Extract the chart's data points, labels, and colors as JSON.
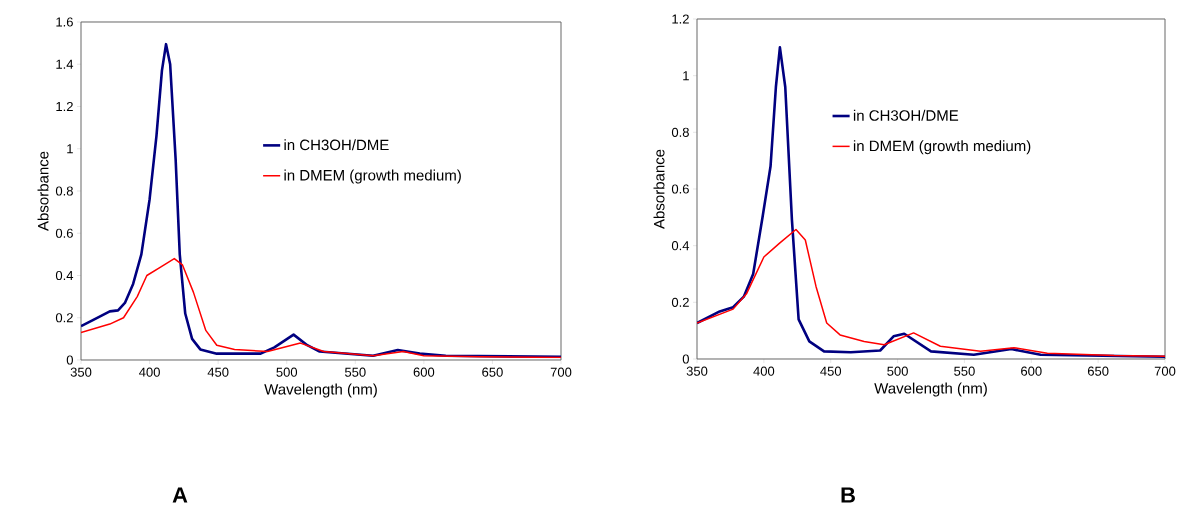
{
  "chart_data": [
    {
      "type": "line",
      "xlabel": "Wavelength (nm)",
      "ylabel": "Absorbance",
      "xlim": [
        350,
        700
      ],
      "xticks": [
        350,
        400,
        450,
        500,
        550,
        600,
        650,
        700
      ],
      "ylim": [
        0,
        1.6
      ],
      "yticks": [
        0,
        0.2,
        0.4,
        0.6,
        0.8,
        1,
        1.2,
        1.4,
        1.6
      ],
      "legend": "right",
      "annotations": [
        "A"
      ],
      "series": [
        {
          "name": "in CH3OH/DME",
          "color": "#000080",
          "x": [
            350,
            359,
            371,
            377,
            382,
            388,
            394,
            400,
            405,
            409,
            412,
            415,
            419,
            422,
            426,
            431,
            437,
            449,
            481,
            491,
            505,
            515,
            524,
            563,
            581,
            597,
            616,
            700
          ],
          "values": [
            0.16,
            0.19,
            0.23,
            0.235,
            0.27,
            0.36,
            0.5,
            0.76,
            1.06,
            1.37,
            1.495,
            1.4,
            0.95,
            0.5,
            0.22,
            0.1,
            0.05,
            0.03,
            0.03,
            0.06,
            0.12,
            0.07,
            0.04,
            0.02,
            0.047,
            0.03,
            0.02,
            0.015
          ]
        },
        {
          "name": "in DMEM (growth medium)",
          "color": "#ff0000",
          "x": [
            350,
            371,
            381,
            391,
            398,
            408,
            418,
            424,
            432,
            441,
            449,
            462,
            486,
            510,
            527,
            563,
            585,
            600,
            641,
            700
          ],
          "values": [
            0.13,
            0.17,
            0.2,
            0.3,
            0.4,
            0.44,
            0.48,
            0.45,
            0.32,
            0.14,
            0.07,
            0.05,
            0.04,
            0.08,
            0.04,
            0.02,
            0.04,
            0.02,
            0.015,
            0.012
          ]
        }
      ]
    },
    {
      "type": "line",
      "xlabel": "Wavelength (nm)",
      "ylabel": "Absorbance",
      "xlim": [
        350,
        700
      ],
      "xticks": [
        350,
        400,
        450,
        500,
        550,
        600,
        650,
        700
      ],
      "ylim": [
        0,
        1.2
      ],
      "yticks": [
        0,
        0.2,
        0.4,
        0.6,
        0.8,
        1,
        1.2
      ],
      "legend": "top right",
      "annotations": [
        "B"
      ],
      "series": [
        {
          "name": "in CH3OH/DME",
          "color": "#000080",
          "x": [
            350,
            367,
            377,
            385,
            392,
            399,
            405,
            409,
            412,
            416,
            421,
            426,
            434,
            445,
            465,
            487,
            497,
            505,
            525,
            557,
            585,
            607,
            700
          ],
          "values": [
            0.127,
            0.168,
            0.183,
            0.22,
            0.3,
            0.5,
            0.68,
            0.96,
            1.1,
            0.96,
            0.49,
            0.14,
            0.062,
            0.027,
            0.024,
            0.03,
            0.08,
            0.089,
            0.027,
            0.015,
            0.035,
            0.015,
            0.008
          ]
        },
        {
          "name": "in DMEM (growth medium)",
          "color": "#ff0000",
          "x": [
            350,
            377,
            387,
            400,
            412,
            424,
            431,
            439,
            447,
            457,
            475,
            490,
            512,
            532,
            562,
            587,
            612,
            662,
            700
          ],
          "values": [
            0.127,
            0.176,
            0.23,
            0.36,
            0.41,
            0.457,
            0.42,
            0.256,
            0.127,
            0.085,
            0.062,
            0.05,
            0.092,
            0.045,
            0.027,
            0.04,
            0.02,
            0.012,
            0.01
          ]
        }
      ]
    }
  ]
}
